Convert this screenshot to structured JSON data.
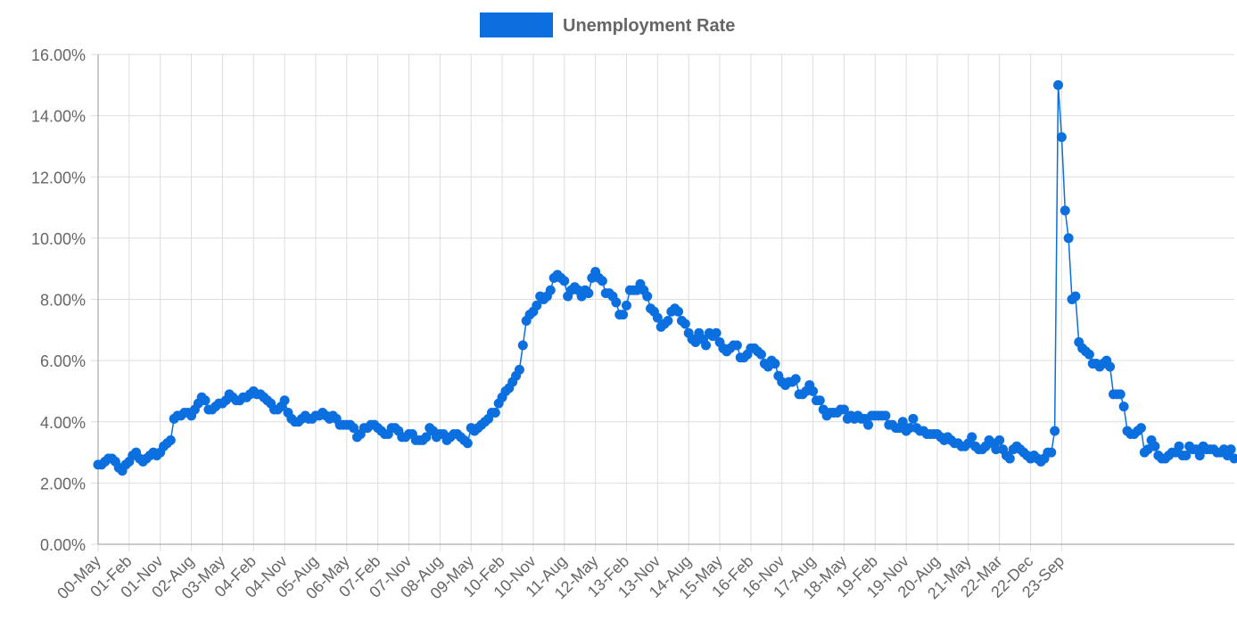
{
  "chart_data": {
    "type": "line",
    "legend": {
      "label": "Unemployment Rate",
      "position": "top",
      "color": "#0b6fdf"
    },
    "series": [
      {
        "name": "Unemployment Rate",
        "color": "#0b6fdf",
        "values": [
          2.6,
          2.6,
          2.7,
          2.8,
          2.8,
          2.7,
          2.5,
          2.4,
          2.6,
          2.7,
          2.9,
          3.0,
          2.8,
          2.7,
          2.8,
          2.9,
          3.0,
          2.9,
          3.0,
          3.2,
          3.3,
          3.4,
          4.1,
          4.2,
          4.2,
          4.3,
          4.3,
          4.2,
          4.4,
          4.6,
          4.8,
          4.7,
          4.4,
          4.4,
          4.5,
          4.6,
          4.6,
          4.7,
          4.9,
          4.8,
          4.7,
          4.7,
          4.8,
          4.8,
          4.9,
          5.0,
          4.9,
          4.9,
          4.8,
          4.7,
          4.6,
          4.4,
          4.4,
          4.5,
          4.7,
          4.3,
          4.1,
          4.0,
          4.0,
          4.1,
          4.2,
          4.1,
          4.1,
          4.2,
          4.2,
          4.3,
          4.2,
          4.1,
          4.2,
          4.1,
          3.9,
          3.9,
          3.9,
          3.9,
          3.8,
          3.5,
          3.6,
          3.8,
          3.8,
          3.9,
          3.9,
          3.8,
          3.7,
          3.6,
          3.6,
          3.8,
          3.8,
          3.7,
          3.5,
          3.5,
          3.6,
          3.6,
          3.4,
          3.4,
          3.4,
          3.5,
          3.8,
          3.7,
          3.5,
          3.6,
          3.6,
          3.4,
          3.5,
          3.6,
          3.6,
          3.5,
          3.4,
          3.3,
          3.8,
          3.7,
          3.8,
          3.9,
          4.0,
          4.1,
          4.3,
          4.3,
          4.6,
          4.8,
          5.0,
          5.1,
          5.3,
          5.5,
          5.7,
          6.5,
          7.3,
          7.5,
          7.6,
          7.8,
          8.1,
          8.0,
          8.1,
          8.3,
          8.7,
          8.8,
          8.7,
          8.6,
          8.1,
          8.3,
          8.4,
          8.3,
          8.1,
          8.3,
          8.2,
          8.7,
          8.9,
          8.7,
          8.6,
          8.2,
          8.2,
          8.1,
          7.9,
          7.5,
          7.5,
          7.8,
          8.3,
          8.3,
          8.3,
          8.5,
          8.3,
          8.1,
          7.7,
          7.6,
          7.4,
          7.1,
          7.2,
          7.3,
          7.6,
          7.7,
          7.6,
          7.3,
          7.2,
          6.9,
          6.7,
          6.6,
          6.9,
          6.7,
          6.5,
          6.9,
          6.8,
          6.9,
          6.6,
          6.4,
          6.3,
          6.4,
          6.5,
          6.5,
          6.1,
          6.1,
          6.2,
          6.4,
          6.4,
          6.3,
          6.2,
          5.9,
          5.8,
          6.0,
          5.9,
          5.5,
          5.3,
          5.2,
          5.3,
          5.3,
          5.4,
          4.9,
          4.9,
          5.0,
          5.2,
          5.0,
          4.7,
          4.7,
          4.4,
          4.2,
          4.3,
          4.3,
          4.3,
          4.4,
          4.4,
          4.1,
          4.2,
          4.1,
          4.2,
          4.1,
          4.1,
          3.9,
          4.2,
          4.2,
          4.2,
          4.2,
          4.2,
          3.9,
          3.9,
          3.8,
          3.8,
          4.0,
          3.7,
          3.8,
          4.1,
          3.8,
          3.7,
          3.7,
          3.6,
          3.6,
          3.6,
          3.6,
          3.5,
          3.4,
          3.5,
          3.4,
          3.3,
          3.3,
          3.2,
          3.2,
          3.3,
          3.5,
          3.2,
          3.1,
          3.1,
          3.2,
          3.4,
          3.3,
          3.1,
          3.4,
          3.1,
          2.9,
          2.8,
          3.1,
          3.2,
          3.1,
          3.0,
          2.9,
          2.8,
          2.9,
          2.8,
          2.7,
          2.8,
          3.0,
          3.0,
          3.7,
          15.0,
          13.3,
          10.9,
          10.0,
          8.0,
          8.1,
          6.6,
          6.4,
          6.3,
          6.2,
          5.9,
          5.9,
          5.8,
          5.9,
          6.0,
          5.8,
          4.9,
          4.9,
          4.9,
          4.5,
          3.7,
          3.6,
          3.6,
          3.7,
          3.8,
          3.0,
          3.1,
          3.4,
          3.2,
          2.9,
          2.8,
          2.8,
          2.9,
          3.0,
          3.0,
          3.2,
          2.9,
          2.9,
          3.2,
          3.1,
          3.1,
          2.9,
          3.2,
          3.1,
          3.1,
          3.1,
          3.0,
          3.0,
          3.1,
          2.9,
          3.1,
          2.8
        ]
      }
    ],
    "x_tick_labels": [
      "00-May",
      "01-Feb",
      "01-Nov",
      "02-Aug",
      "03-May",
      "04-Feb",
      "04-Nov",
      "05-Aug",
      "06-May",
      "07-Feb",
      "07-Nov",
      "08-Aug",
      "09-May",
      "10-Feb",
      "10-Nov",
      "11-Aug",
      "12-May",
      "13-Feb",
      "13-Nov",
      "14-Aug",
      "15-May",
      "16-Feb",
      "16-Nov",
      "17-Aug",
      "18-May",
      "19-Feb",
      "19-Nov",
      "20-Aug",
      "21-May",
      "22-Mar",
      "22-Dec",
      "23-Sep"
    ],
    "x_tick_step": 9,
    "y_tick_labels": [
      "0.00%",
      "2.00%",
      "4.00%",
      "6.00%",
      "8.00%",
      "10.00%",
      "12.00%",
      "14.00%",
      "16.00%"
    ],
    "ylim": [
      0,
      16
    ],
    "y_step": 2,
    "grid": true
  }
}
